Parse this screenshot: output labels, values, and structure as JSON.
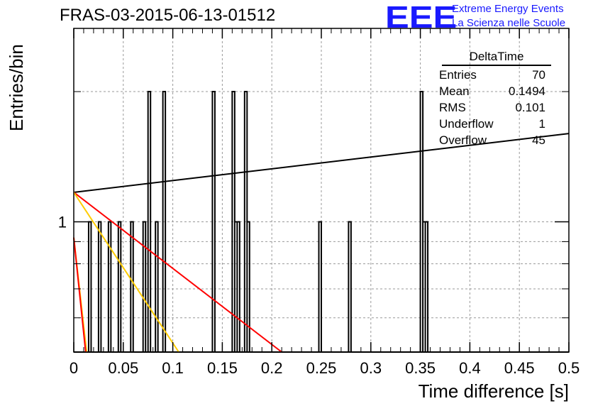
{
  "chart_data": {
    "type": "step-histogram",
    "title": "FRAS-03-2015-06-13-01512",
    "xlabel": "Time difference [s]",
    "ylabel": "Entries/bin",
    "xlim": [
      0,
      0.5
    ],
    "y_scale": "log",
    "x_tick_labels": [
      "0",
      "0.05",
      "0.1",
      "0.15",
      "0.2",
      "0.25",
      "0.3",
      "0.35",
      "0.4",
      "0.45",
      "0.5"
    ],
    "y_tick_labels": [
      "1"
    ],
    "grid": true,
    "bin_width": 0.0025,
    "bins": [
      {
        "x0": 0.015,
        "count": 1
      },
      {
        "x0": 0.025,
        "count": 1
      },
      {
        "x0": 0.035,
        "count": 1
      },
      {
        "x0": 0.045,
        "count": 1
      },
      {
        "x0": 0.0575,
        "count": 1
      },
      {
        "x0": 0.07,
        "count": 1
      },
      {
        "x0": 0.075,
        "count": 2
      },
      {
        "x0": 0.0825,
        "count": 1
      },
      {
        "x0": 0.09,
        "count": 2
      },
      {
        "x0": 0.14,
        "count": 2
      },
      {
        "x0": 0.16,
        "count": 2
      },
      {
        "x0": 0.1625,
        "count": 1
      },
      {
        "x0": 0.165,
        "count": 1
      },
      {
        "x0": 0.1725,
        "count": 2
      },
      {
        "x0": 0.175,
        "count": 1
      },
      {
        "x0": 0.2475,
        "count": 1
      },
      {
        "x0": 0.2775,
        "count": 1
      },
      {
        "x0": 0.35,
        "count": 2
      },
      {
        "x0": 0.3525,
        "count": 1
      },
      {
        "x0": 0.355,
        "count": 1
      }
    ],
    "fit_lines": [
      {
        "color": "#000000",
        "points": [
          [
            0.0,
            1.17
          ],
          [
            0.5,
            1.6
          ]
        ]
      },
      {
        "color": "#ff0000",
        "points": [
          [
            0.0,
            1.17
          ],
          [
            0.21,
            0.5
          ]
        ]
      },
      {
        "color": "#ffcc00",
        "points": [
          [
            0.0,
            1.17
          ],
          [
            0.106,
            0.5
          ]
        ]
      },
      {
        "color": "#ffcc00",
        "points": [
          [
            0.0,
            0.92
          ],
          [
            0.013,
            0.5
          ]
        ]
      },
      {
        "color": "#ff0000",
        "points": [
          [
            0.0,
            0.92
          ],
          [
            0.012,
            0.5
          ]
        ]
      }
    ],
    "stats": {
      "title": "DeltaTime",
      "rows": [
        {
          "label": "Entries",
          "value": "70"
        },
        {
          "label": "Mean",
          "value": "0.1494"
        },
        {
          "label": "RMS",
          "value": "0.101"
        },
        {
          "label": "Underflow",
          "value": "1"
        },
        {
          "label": "Overflow",
          "value": "45"
        }
      ]
    }
  },
  "logo": {
    "text": "EEE",
    "line1": "Extreme Energy Events",
    "line2": "La Scienza nelle Scuole",
    "color": "#1a1aff"
  }
}
